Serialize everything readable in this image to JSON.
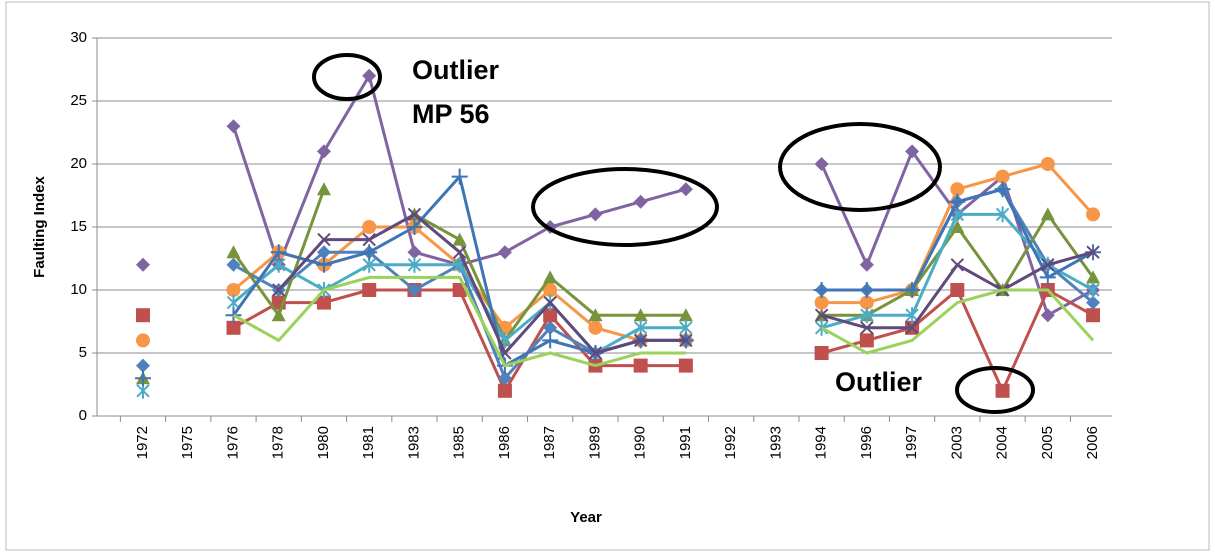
{
  "chart_data": {
    "type": "line",
    "y_label": "Faulting Index",
    "x_label": "Year",
    "categories": [
      "1972",
      "1975",
      "1976",
      "1978",
      "1980",
      "1981",
      "1983",
      "1985",
      "1986",
      "1987",
      "1989",
      "1990",
      "1991",
      "1992",
      "1993",
      "1994",
      "1996",
      "1997",
      "2003",
      "2004",
      "2005",
      "2006"
    ],
    "ylim": [
      0,
      30
    ],
    "yticks": [
      0,
      5,
      10,
      15,
      20,
      25,
      30
    ],
    "grid": true,
    "series": [
      {
        "color": "#8064a2",
        "marker": "diamond",
        "values": [
          12,
          null,
          23,
          12,
          21,
          27,
          13,
          12,
          13,
          15,
          16,
          17,
          18,
          null,
          null,
          20,
          12,
          21,
          16,
          19,
          8,
          10
        ]
      },
      {
        "color": "#c0504d",
        "marker": "square",
        "values": [
          8,
          null,
          7,
          9,
          9,
          10,
          10,
          10,
          2,
          8,
          4,
          4,
          4,
          null,
          null,
          5,
          6,
          7,
          10,
          2,
          10,
          8
        ]
      },
      {
        "color": "#f79646",
        "marker": "circle",
        "values": [
          6,
          null,
          10,
          13,
          12,
          15,
          15,
          12,
          7,
          10,
          7,
          6,
          6,
          null,
          null,
          9,
          9,
          10,
          18,
          19,
          20,
          16
        ]
      },
      {
        "color": "#4f81bd",
        "marker": "diamond",
        "values": [
          4,
          null,
          12,
          10,
          13,
          13,
          10,
          12,
          3,
          7,
          5,
          6,
          6,
          null,
          null,
          10,
          10,
          10,
          17,
          18,
          12,
          9
        ]
      },
      {
        "color": "#77933c",
        "marker": "triangle",
        "values": [
          3,
          null,
          13,
          8,
          18,
          null,
          16,
          14,
          6,
          11,
          8,
          8,
          8,
          null,
          null,
          8,
          8,
          10,
          15,
          10,
          16,
          11
        ]
      },
      {
        "color": "#4bacc6",
        "marker": "star",
        "values": [
          2,
          null,
          9,
          12,
          10,
          12,
          12,
          12,
          6,
          9,
          5,
          7,
          7,
          null,
          null,
          7,
          8,
          8,
          16,
          16,
          12,
          10
        ]
      },
      {
        "color": "#3f75b5",
        "marker": "plus",
        "values": [
          3,
          null,
          8,
          13,
          12,
          13,
          15,
          19,
          4,
          6,
          5,
          6,
          6,
          null,
          null,
          10,
          10,
          10,
          17,
          18,
          11,
          13
        ]
      },
      {
        "color": "#604a7b",
        "marker": "x",
        "values": [
          null,
          null,
          null,
          10,
          14,
          14,
          16,
          13,
          5,
          9,
          5,
          6,
          6,
          null,
          null,
          8,
          7,
          7,
          12,
          10,
          12,
          13
        ]
      },
      {
        "color": "#9bd25a",
        "marker": "none",
        "values": [
          null,
          null,
          8,
          6,
          10,
          11,
          11,
          11,
          4,
          5,
          4,
          5,
          5,
          null,
          null,
          7,
          5,
          6,
          9,
          10,
          10,
          6
        ]
      }
    ],
    "annotations": [
      "Outlier",
      "MP 56",
      "Outlier"
    ]
  }
}
